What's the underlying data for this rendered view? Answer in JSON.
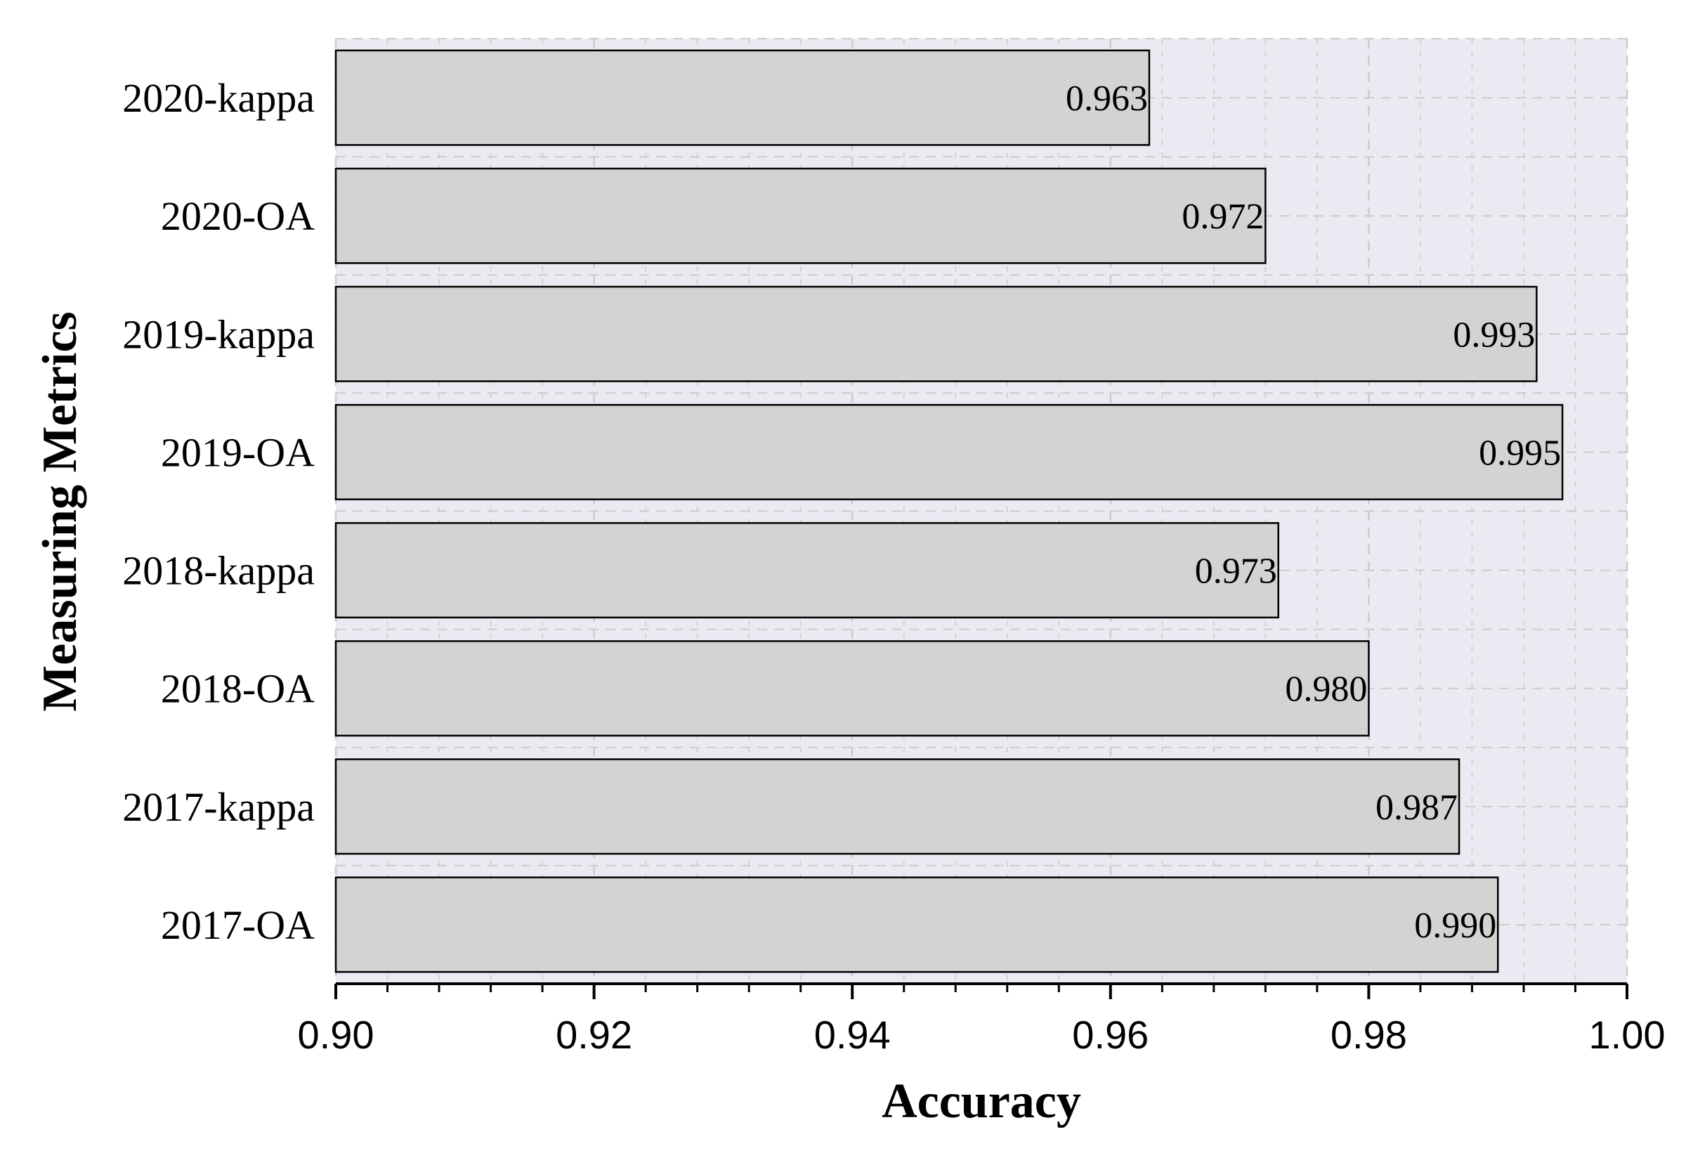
{
  "chart_data": {
    "type": "bar",
    "orientation": "horizontal",
    "categories": [
      "2020-kappa",
      "2020-OA",
      "2019-kappa",
      "2019-OA",
      "2018-kappa",
      "2018-OA",
      "2017-kappa",
      "2017-OA"
    ],
    "values": [
      0.963,
      0.972,
      0.993,
      0.995,
      0.973,
      0.98,
      0.987,
      0.99
    ],
    "value_labels": [
      "0.963",
      "0.972",
      "0.993",
      "0.995",
      "0.973",
      "0.980",
      "0.987",
      "0.990"
    ],
    "xlabel": "Accuracy",
    "ylabel": "Measuring Metrics",
    "xlim": [
      0.9,
      1.0
    ],
    "xticks": [
      0.9,
      0.92,
      0.94,
      0.96,
      0.98,
      1.0
    ],
    "xtick_labels": [
      "0.90",
      "0.92",
      "0.94",
      "0.96",
      "0.98",
      "1.00"
    ],
    "grid": true,
    "grid_style": "dashed",
    "colors": {
      "bar_fill": "#d3d3d3",
      "bar_edge": "#000000",
      "plot_background": "#eaeaf2",
      "grid": "#cccccc"
    }
  }
}
